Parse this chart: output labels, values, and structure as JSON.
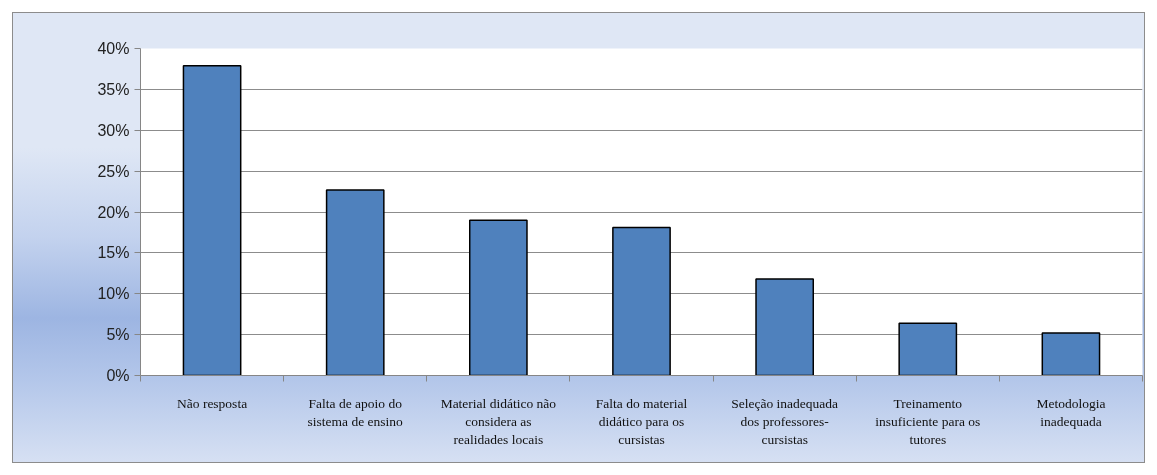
{
  "chart_data": {
    "type": "bar",
    "categories": [
      "Não resposta",
      "Falta de apoio do sistema de ensino",
      "Material didático não considera as realidades locais",
      "Falta do material didático para os cursistas",
      "Seleção inadequada dos professores-cursistas",
      "Treinamento insuficiente para os tutores",
      "Metodologia inadequada"
    ],
    "values": [
      37.9,
      22.7,
      19.0,
      18.1,
      11.8,
      6.4,
      5.2
    ],
    "color": "#4f81bd",
    "ylim": [
      0,
      40
    ],
    "yticks": [
      {
        "value": 0,
        "label": "0%"
      },
      {
        "value": 5,
        "label": "5%"
      },
      {
        "value": 10,
        "label": "10%"
      },
      {
        "value": 15,
        "label": "15%"
      },
      {
        "value": 20,
        "label": "20%"
      },
      {
        "value": 25,
        "label": "25%"
      },
      {
        "value": 30,
        "label": "30%"
      },
      {
        "value": 35,
        "label": "35%"
      },
      {
        "value": 40,
        "label": "40%"
      }
    ],
    "grid": "y"
  }
}
